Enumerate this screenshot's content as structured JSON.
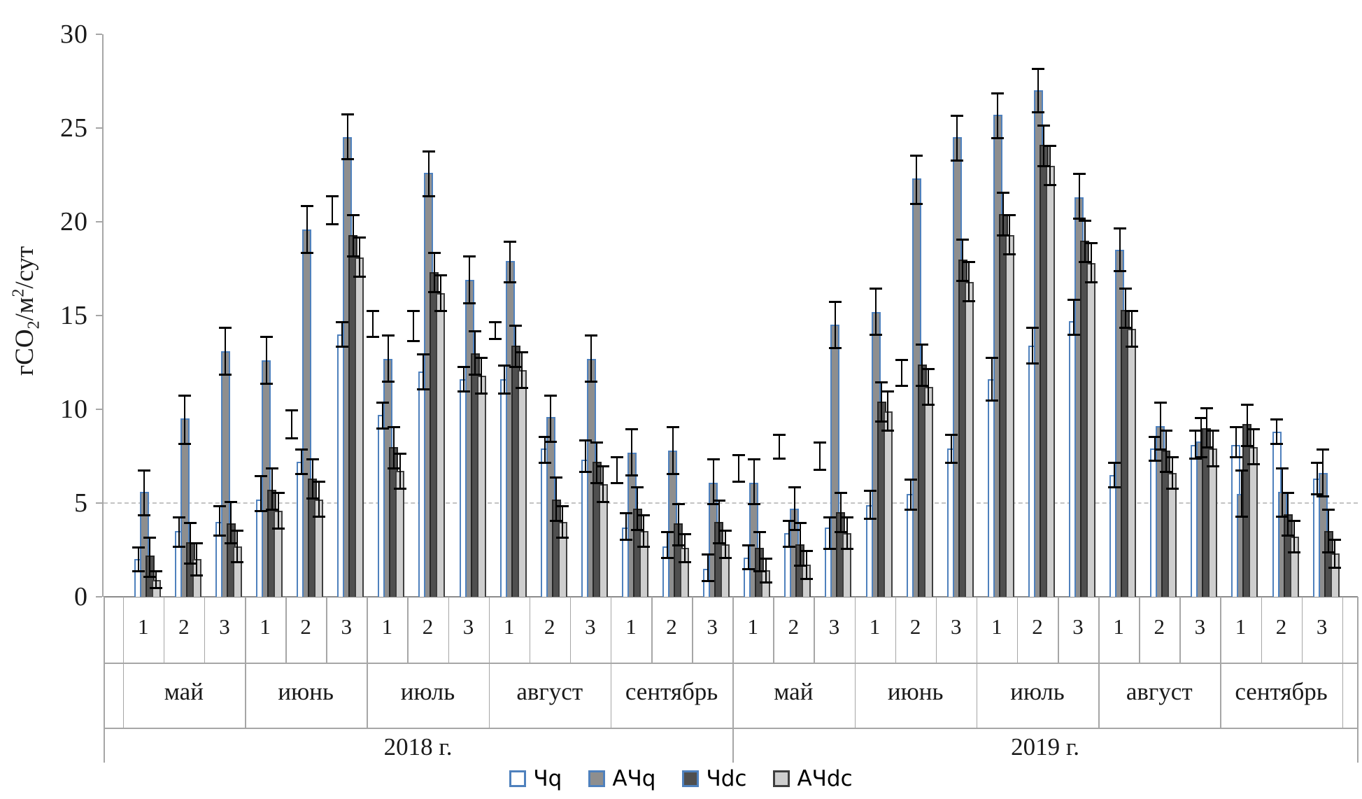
{
  "chart_data": {
    "type": "bar",
    "title": "",
    "ylabel": "гCO2/м2/сут",
    "y_axis": {
      "label_prefix": "гCO",
      "label_sub": "2",
      "label_mid": "/м",
      "label_sup": "2",
      "label_suffix": "/сут",
      "ticks": [
        0,
        5,
        10,
        15,
        20,
        25,
        30
      ],
      "ylim": [
        0,
        30
      ],
      "dashed_gridline_at": 5,
      "grid": "only dashed line at y=5"
    },
    "legend_position": "bottom-center",
    "series": [
      {
        "name": "Чq",
        "fill": "#ffffff",
        "border": "#4f81bd"
      },
      {
        "name": "АЧq",
        "fill": "#8e8e8e",
        "border": "#4f81bd"
      },
      {
        "name": "Чdc",
        "fill": "#4f4f4f",
        "border": "#262626"
      },
      {
        "name": "АЧdc",
        "fill": "#cecece",
        "border": "#3f3f3f"
      }
    ],
    "groups": [
      {
        "year": "2018 г.",
        "month": "май",
        "decade": "1",
        "values": [
          2.0,
          5.6,
          2.2,
          0.9
        ],
        "err_lo": [
          1.3,
          4.3,
          1.0,
          0.4
        ],
        "err_hi": [
          2.7,
          6.8,
          3.2,
          1.4
        ],
        "floater": null
      },
      {
        "year": "2018 г.",
        "month": "май",
        "decade": "2",
        "values": [
          3.5,
          9.5,
          2.9,
          2.0
        ],
        "err_lo": [
          2.6,
          8.1,
          1.7,
          1.1
        ],
        "err_hi": [
          4.3,
          10.8,
          4.0,
          2.9
        ],
        "floater": null
      },
      {
        "year": "2018 г.",
        "month": "май",
        "decade": "3",
        "values": [
          4.0,
          13.1,
          3.9,
          2.7
        ],
        "err_lo": [
          3.2,
          11.8,
          2.8,
          1.8
        ],
        "err_hi": [
          4.9,
          14.4,
          5.1,
          3.6
        ],
        "floater": null
      },
      {
        "year": "2018 г.",
        "month": "июнь",
        "decade": "1",
        "values": [
          5.2,
          12.6,
          5.7,
          4.6
        ],
        "err_lo": [
          4.5,
          11.3,
          4.6,
          3.6
        ],
        "err_hi": [
          6.5,
          13.9,
          6.9,
          5.6
        ],
        "floater": null
      },
      {
        "year": "2018 г.",
        "month": "июнь",
        "decade": "2",
        "values": [
          7.2,
          19.6,
          6.3,
          5.2
        ],
        "err_lo": [
          6.5,
          18.3,
          5.2,
          4.2
        ],
        "err_hi": [
          7.9,
          20.9,
          7.4,
          6.2
        ],
        "floater": [
          8.4,
          10.0
        ]
      },
      {
        "year": "2018 г.",
        "month": "июнь",
        "decade": "3",
        "values": [
          14.0,
          24.5,
          19.3,
          18.1
        ],
        "err_lo": [
          13.3,
          23.3,
          18.1,
          17.0
        ],
        "err_hi": [
          14.7,
          25.8,
          20.4,
          19.2
        ],
        "floater": [
          19.8,
          21.4
        ]
      },
      {
        "year": "2018 г.",
        "month": "июль",
        "decade": "1",
        "values": [
          9.7,
          12.7,
          8.0,
          6.7
        ],
        "err_lo": [
          8.9,
          11.4,
          6.8,
          5.7
        ],
        "err_hi": [
          10.4,
          14.0,
          9.1,
          7.7
        ],
        "floater": [
          13.8,
          15.3
        ]
      },
      {
        "year": "2018 г.",
        "month": "июль",
        "decade": "2",
        "values": [
          12.0,
          22.6,
          17.3,
          16.2
        ],
        "err_lo": [
          11.0,
          21.3,
          16.2,
          15.2
        ],
        "err_hi": [
          13.0,
          23.8,
          18.4,
          17.2
        ],
        "floater": [
          13.6,
          15.3
        ]
      },
      {
        "year": "2018 г.",
        "month": "июль",
        "decade": "3",
        "values": [
          11.6,
          16.9,
          13.0,
          11.8
        ],
        "err_lo": [
          10.9,
          15.6,
          11.8,
          10.8
        ],
        "err_hi": [
          12.3,
          18.2,
          14.2,
          12.8
        ],
        "floater": null
      },
      {
        "year": "2018 г.",
        "month": "август",
        "decade": "1",
        "values": [
          11.6,
          17.9,
          13.4,
          12.1
        ],
        "err_lo": [
          10.8,
          16.7,
          12.2,
          11.1
        ],
        "err_hi": [
          12.4,
          19.0,
          14.5,
          13.1
        ],
        "floater": [
          13.7,
          14.7
        ]
      },
      {
        "year": "2018 г.",
        "month": "август",
        "decade": "2",
        "values": [
          7.9,
          9.6,
          5.2,
          4.0
        ],
        "err_lo": [
          7.1,
          8.2,
          4.0,
          3.1
        ],
        "err_hi": [
          8.6,
          10.8,
          6.4,
          4.9
        ],
        "floater": null
      },
      {
        "year": "2018 г.",
        "month": "август",
        "decade": "3",
        "values": [
          7.3,
          12.7,
          7.2,
          6.0
        ],
        "err_lo": [
          6.6,
          11.4,
          6.0,
          5.0
        ],
        "err_hi": [
          8.4,
          14.0,
          8.3,
          7.0
        ],
        "floater": null
      },
      {
        "year": "2018 г.",
        "month": "сентябрь",
        "decade": "1",
        "values": [
          3.7,
          7.7,
          4.7,
          3.5
        ],
        "err_lo": [
          3.0,
          6.4,
          3.5,
          2.6
        ],
        "err_hi": [
          4.5,
          9.0,
          5.9,
          4.4
        ],
        "floater": [
          6.0,
          7.5
        ]
      },
      {
        "year": "2018 г.",
        "month": "сентябрь",
        "decade": "2",
        "values": [
          2.7,
          7.8,
          3.9,
          2.6
        ],
        "err_lo": [
          2.0,
          6.5,
          2.7,
          1.8
        ],
        "err_hi": [
          3.5,
          9.1,
          5.0,
          3.4
        ],
        "floater": null
      },
      {
        "year": "2018 г.",
        "month": "сентябрь",
        "decade": "3",
        "values": [
          1.5,
          6.1,
          4.0,
          2.8
        ],
        "err_lo": [
          0.8,
          4.9,
          2.8,
          2.0
        ],
        "err_hi": [
          2.3,
          7.4,
          5.2,
          3.6
        ],
        "floater": null
      },
      {
        "year": "2019 г.",
        "month": "май",
        "decade": "1",
        "values": [
          2.1,
          6.1,
          2.6,
          1.4
        ],
        "err_lo": [
          1.4,
          4.9,
          1.3,
          0.7
        ],
        "err_hi": [
          2.8,
          7.4,
          3.5,
          2.1
        ],
        "floater": [
          6.1,
          7.6
        ]
      },
      {
        "year": "2019 г.",
        "month": "май",
        "decade": "2",
        "values": [
          3.4,
          4.7,
          2.8,
          1.7
        ],
        "err_lo": [
          2.6,
          3.5,
          1.6,
          0.9
        ],
        "err_hi": [
          4.1,
          5.9,
          4.0,
          2.5
        ],
        "floater": [
          7.3,
          8.7
        ]
      },
      {
        "year": "2019 г.",
        "month": "май",
        "decade": "3",
        "values": [
          3.7,
          14.5,
          4.5,
          3.4
        ],
        "err_lo": [
          2.5,
          13.2,
          3.4,
          2.5
        ],
        "err_hi": [
          4.3,
          15.8,
          5.6,
          4.3
        ],
        "floater": [
          6.7,
          8.3
        ]
      },
      {
        "year": "2019 г.",
        "month": "июнь",
        "decade": "1",
        "values": [
          4.9,
          15.2,
          10.4,
          9.9
        ],
        "err_lo": [
          4.1,
          13.9,
          9.3,
          8.8
        ],
        "err_hi": [
          5.7,
          16.5,
          11.5,
          11.0
        ],
        "floater": null
      },
      {
        "year": "2019 г.",
        "month": "июнь",
        "decade": "2",
        "values": [
          5.5,
          22.3,
          12.4,
          11.2
        ],
        "err_lo": [
          4.6,
          20.9,
          11.2,
          10.2
        ],
        "err_hi": [
          6.3,
          23.6,
          13.5,
          12.2
        ],
        "floater": [
          11.2,
          12.7
        ]
      },
      {
        "year": "2019 г.",
        "month": "июнь",
        "decade": "3",
        "values": [
          7.9,
          24.5,
          18.0,
          16.8
        ],
        "err_lo": [
          7.1,
          23.2,
          16.8,
          15.7
        ],
        "err_hi": [
          8.7,
          25.7,
          19.1,
          17.9
        ],
        "floater": null
      },
      {
        "year": "2019 г.",
        "month": "июль",
        "decade": "1",
        "values": [
          11.6,
          25.7,
          20.4,
          19.3
        ],
        "err_lo": [
          10.4,
          24.4,
          19.2,
          18.2
        ],
        "err_hi": [
          12.8,
          26.9,
          21.6,
          20.4
        ],
        "floater": null
      },
      {
        "year": "2019 г.",
        "month": "июль",
        "decade": "2",
        "values": [
          13.4,
          27.0,
          24.1,
          23.0
        ],
        "err_lo": [
          12.4,
          25.8,
          22.9,
          21.9
        ],
        "err_hi": [
          14.4,
          28.2,
          25.2,
          24.1
        ],
        "floater": null
      },
      {
        "year": "2019 г.",
        "month": "июль",
        "decade": "3",
        "values": [
          14.7,
          21.3,
          19.0,
          17.8
        ],
        "err_lo": [
          13.9,
          20.1,
          17.8,
          16.7
        ],
        "err_hi": [
          15.9,
          22.6,
          20.1,
          18.9
        ],
        "floater": null
      },
      {
        "year": "2019 г.",
        "month": "август",
        "decade": "1",
        "values": [
          6.5,
          18.5,
          15.3,
          14.3
        ],
        "err_lo": [
          5.8,
          17.3,
          14.3,
          13.3
        ],
        "err_hi": [
          7.2,
          19.7,
          16.5,
          15.3
        ],
        "floater": null
      },
      {
        "year": "2019 г.",
        "month": "август",
        "decade": "2",
        "values": [
          7.9,
          9.1,
          7.8,
          6.6
        ],
        "err_lo": [
          7.2,
          7.8,
          6.6,
          5.7
        ],
        "err_hi": [
          8.6,
          10.4,
          8.9,
          7.5
        ],
        "floater": null
      },
      {
        "year": "2019 г.",
        "month": "август",
        "decade": "3",
        "values": [
          8.1,
          8.3,
          9.0,
          7.9
        ],
        "err_lo": [
          7.3,
          7.4,
          7.9,
          6.9
        ],
        "err_hi": [
          8.9,
          9.6,
          10.1,
          8.9
        ],
        "floater": null
      },
      {
        "year": "2019 г.",
        "month": "сентябрь",
        "decade": "1",
        "values": [
          8.1,
          5.5,
          9.2,
          8.0
        ],
        "err_lo": [
          7.4,
          4.2,
          8.0,
          7.0
        ],
        "err_hi": [
          9.1,
          6.8,
          10.3,
          9.0
        ],
        "floater": null
      },
      {
        "year": "2019 г.",
        "month": "сентябрь",
        "decade": "2",
        "values": [
          8.8,
          5.6,
          4.4,
          3.2
        ],
        "err_lo": [
          8.1,
          4.2,
          3.2,
          2.3
        ],
        "err_hi": [
          9.5,
          6.9,
          5.6,
          4.1
        ],
        "floater": null
      },
      {
        "year": "2019 г.",
        "month": "сентябрь",
        "decade": "3",
        "values": [
          6.3,
          6.6,
          3.5,
          2.3
        ],
        "err_lo": [
          5.4,
          5.3,
          2.3,
          1.5
        ],
        "err_hi": [
          7.2,
          7.9,
          4.7,
          3.1
        ],
        "floater": null
      }
    ]
  },
  "colors": {
    "accent_blue": "#4f81bd",
    "axis_gray": "#a6a6a6",
    "error_bar": "#000000"
  }
}
